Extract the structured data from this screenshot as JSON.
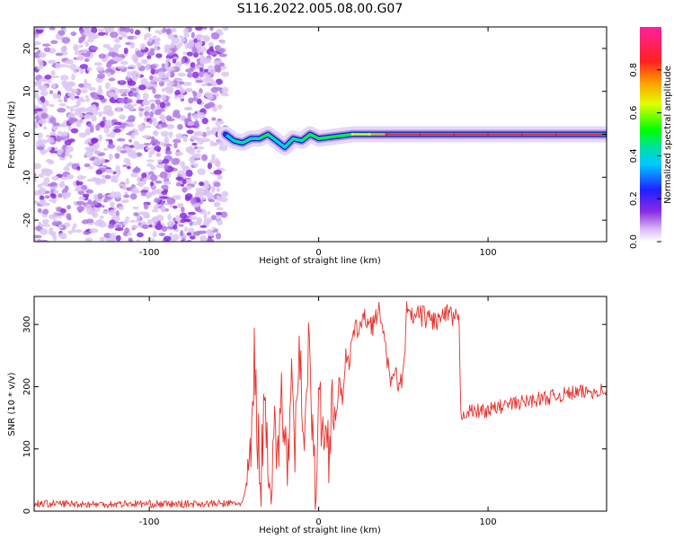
{
  "title": "S116.2022.005.08.00.G07",
  "colors": {
    "snr_line": "#e8302a",
    "spectrum_scatter": "#8a2be2",
    "background": "#ffffff",
    "axes": "#000000"
  },
  "chart_data": [
    {
      "type": "heatmap",
      "xlabel": "Height of straight line (km)",
      "ylabel": "Frequency (Hz)",
      "xlim": [
        -168,
        170
      ],
      "ylim": [
        -25,
        25
      ],
      "xticks": [
        -100,
        0,
        100
      ],
      "xtick_labels": [
        "-100",
        "0",
        "100"
      ],
      "yticks": [
        -20,
        -10,
        0,
        10,
        20
      ],
      "ytick_labels": [
        "-20",
        "-10",
        "0",
        "10",
        "20"
      ],
      "colorbar": {
        "label": "Normalized spectral amplitude",
        "range": [
          0,
          1
        ],
        "ticks": [
          0.0,
          0.2,
          0.4,
          0.6,
          0.8
        ],
        "tick_labels": [
          "0.0",
          "0.2",
          "0.4",
          "0.6",
          "0.8"
        ],
        "colormap": "rainbow (white→purple→blue→cyan→green→yellow→red→magenta)"
      },
      "noise_region": {
        "x_range": [
          -168,
          -55
        ],
        "y_range": [
          -25,
          25
        ]
      },
      "signal_track": {
        "x": [
          -55,
          -50,
          -45,
          -40,
          -35,
          -30,
          -25,
          -20,
          -15,
          -10,
          -5,
          0,
          10,
          20,
          30,
          40,
          60,
          80,
          100,
          120,
          140,
          170
        ],
        "y": [
          0,
          -1.5,
          -2,
          -1,
          -1,
          0,
          -1.5,
          -3,
          -1,
          -1.5,
          0,
          -1,
          -0.5,
          0,
          0,
          0,
          0,
          0,
          0,
          0,
          0,
          0
        ],
        "amplitude": [
          0.3,
          0.5,
          0.5,
          0.4,
          0.5,
          0.6,
          0.4,
          0.4,
          0.5,
          0.5,
          0.6,
          0.6,
          0.6,
          0.7,
          0.7,
          0.9,
          0.9,
          0.9,
          0.9,
          0.85,
          0.85,
          0.85
        ]
      }
    },
    {
      "type": "line",
      "xlabel": "Height of straight line (km)",
      "ylabel": "SNR (10 * v/v)",
      "xlim": [
        -168,
        170
      ],
      "ylim": [
        0,
        345
      ],
      "xticks": [
        -100,
        0,
        100
      ],
      "xtick_labels": [
        "-100",
        "0",
        "100"
      ],
      "yticks": [
        0,
        100,
        200,
        300
      ],
      "ytick_labels": [
        "0",
        "100",
        "200",
        "300"
      ],
      "series": [
        {
          "x": [
            -168,
            -150,
            -130,
            -110,
            -90,
            -70,
            -55,
            -45,
            -41,
            -39,
            -38,
            -36,
            -34,
            -32,
            -30,
            -28,
            -26,
            -24,
            -22,
            -20,
            -18,
            -16,
            -14,
            -12,
            -10,
            -8,
            -6,
            -4,
            -2,
            0,
            2,
            4,
            6,
            8,
            10,
            12,
            14,
            16,
            18,
            20,
            22,
            25,
            28,
            32,
            36,
            38,
            40,
            42,
            44,
            46,
            48,
            50,
            52,
            55,
            60,
            65,
            70,
            75,
            80,
            83,
            84,
            86,
            90,
            100,
            110,
            120,
            130,
            140,
            150,
            160,
            170
          ],
          "y": [
            12,
            12,
            11,
            12,
            11,
            12,
            12,
            13,
            60,
            150,
            250,
            120,
            60,
            180,
            100,
            40,
            150,
            70,
            200,
            110,
            80,
            190,
            90,
            250,
            200,
            120,
            300,
            150,
            30,
            170,
            140,
            120,
            100,
            190,
            150,
            200,
            180,
            260,
            230,
            280,
            290,
            300,
            310,
            300,
            320,
            300,
            240,
            220,
            210,
            215,
            200,
            220,
            320,
            310,
            315,
            310,
            305,
            315,
            310,
            300,
            150,
            160,
            160,
            162,
            170,
            175,
            180,
            185,
            190,
            192,
            195
          ]
        }
      ]
    }
  ]
}
